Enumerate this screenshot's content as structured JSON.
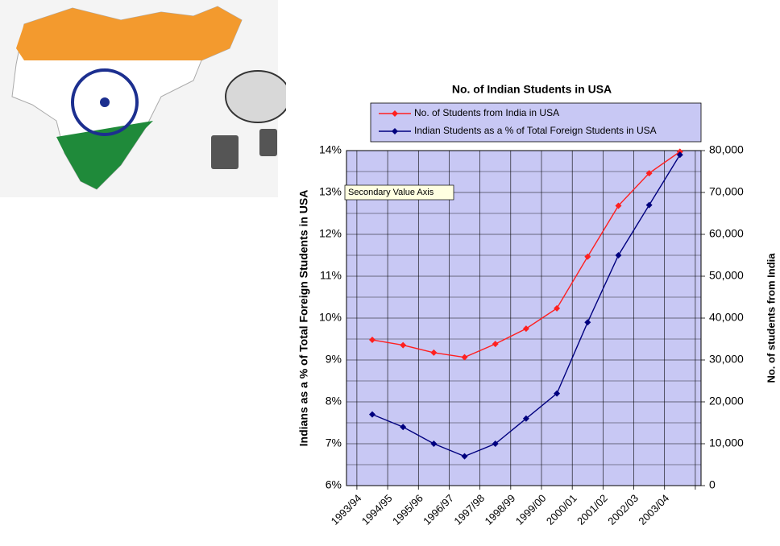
{
  "chart_data": {
    "type": "line",
    "title": "No. of Indian Students in USA",
    "y_label": "Indians as a %  of Total Foreign Students in USA",
    "y2_label": "No. of students from India",
    "annotation": "Secondary Value Axis",
    "categories": [
      "1993/94",
      "1994/95",
      "1995/96",
      "1996/97",
      "1997/98",
      "1998/99",
      "1999/00",
      "2000/01",
      "2001/02",
      "2002/03",
      "2003/04"
    ],
    "series": [
      {
        "name": "No. of Students from India in USA",
        "color": "#ff2020",
        "axis": "y2",
        "values": [
          34796,
          33537,
          31743,
          30641,
          33818,
          37482,
          42337,
          54664,
          66836,
          74603,
          79736
        ]
      },
      {
        "name": "Indian Students as a % of Total Foreign Students in USA",
        "color": "#00007f",
        "values": [
          7.7,
          7.4,
          7.0,
          6.7,
          7.0,
          7.6,
          8.2,
          9.9,
          11.5,
          12.7,
          13.9
        ]
      }
    ],
    "ylim": [
      6,
      14
    ],
    "yticks": [
      {
        "value": 6,
        "label": "6%"
      },
      {
        "value": 7,
        "label": "7%"
      },
      {
        "value": 8,
        "label": "8%"
      },
      {
        "value": 9,
        "label": "9%"
      },
      {
        "value": 10,
        "label": "10%"
      },
      {
        "value": 11,
        "label": "11%"
      },
      {
        "value": 12,
        "label": "12%"
      },
      {
        "value": 13,
        "label": "13%"
      },
      {
        "value": 14,
        "label": "14%"
      }
    ],
    "y2lim": [
      0,
      80000
    ],
    "y2ticks": [
      0,
      {
        "value": 10000,
        "label": "10,000"
      },
      {
        "value": 20000,
        "label": "20,000"
      },
      {
        "value": 30000,
        "label": "30,000"
      },
      {
        "value": 40000,
        "label": "40,000"
      },
      {
        "value": 50000,
        "label": "50,000"
      },
      {
        "value": 60000,
        "label": "60,000"
      },
      {
        "value": 70000,
        "label": "70,000"
      },
      {
        "value": 80000,
        "label": "80,000"
      }
    ],
    "grid": true,
    "plot_background": "#c8c8f4"
  }
}
